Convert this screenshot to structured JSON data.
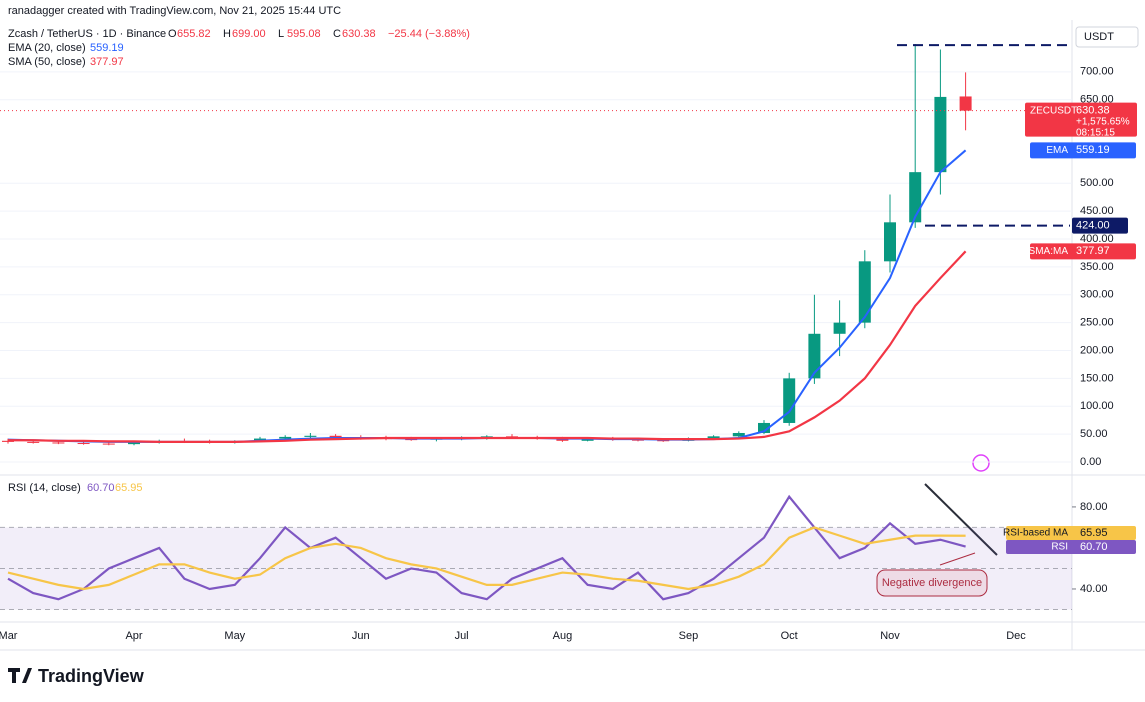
{
  "header": {
    "creator": "ranadagger created with TradingView.com, Nov 21, 2025 15:44 UTC",
    "ohlc": [
      {
        "label": "O",
        "value": "655.82"
      },
      {
        "label": "H",
        "value": "699.00"
      },
      {
        "label": "L",
        "value": "595.08"
      },
      {
        "label": "C",
        "value": "630.38"
      }
    ],
    "change": "−25.44 (−3.88%)",
    "currency": "USDT",
    "price_badge": {
      "symbol": "ZECUSDT",
      "price": "630.38",
      "change": "+1,575.65%",
      "countdown": "08:15:15"
    },
    "brand": "TradingView"
  },
  "chart_data": [
    {
      "type": "candlestick",
      "title": "Zcash / TetherUS · 1D · Binance",
      "categories": [
        "Mar",
        null,
        null,
        null,
        null,
        "Apr",
        null,
        null,
        null,
        "May",
        null,
        null,
        null,
        null,
        "Jun",
        null,
        null,
        null,
        "Jul",
        null,
        null,
        null,
        "Aug",
        null,
        null,
        null,
        null,
        "Sep",
        null,
        null,
        null,
        "Oct",
        null,
        null,
        null,
        "Nov",
        null,
        null,
        null,
        null,
        "Dec"
      ],
      "open": [
        38,
        36,
        35,
        34,
        33,
        32,
        35,
        37,
        36,
        35,
        37,
        42,
        45,
        47,
        44,
        43,
        41,
        40,
        42,
        43,
        46,
        44,
        42,
        38,
        42,
        40,
        39,
        38,
        42,
        46,
        52,
        70,
        150,
        230,
        250,
        360,
        430,
        520,
        655.82,
        null,
        null
      ],
      "high": [
        42,
        40,
        38,
        37,
        36,
        37,
        40,
        42,
        40,
        39,
        45,
        48,
        52,
        50,
        48,
        47,
        45,
        44,
        46,
        48,
        50,
        47,
        45,
        44,
        45,
        43,
        42,
        44,
        48,
        55,
        75,
        160,
        300,
        290,
        380,
        480,
        750,
        740,
        699,
        null,
        null
      ],
      "low": [
        33,
        33,
        32,
        31,
        30,
        30,
        33,
        34,
        33,
        33,
        35,
        40,
        42,
        42,
        40,
        39,
        38,
        37,
        39,
        40,
        42,
        40,
        36,
        37,
        38,
        37,
        36,
        37,
        40,
        44,
        50,
        65,
        140,
        190,
        240,
        340,
        420,
        480,
        595.08,
        null,
        null
      ],
      "close": [
        36,
        35,
        34,
        33,
        32,
        35,
        37,
        36,
        35,
        37,
        42,
        45,
        47,
        44,
        43,
        41,
        40,
        42,
        43,
        46,
        44,
        42,
        38,
        42,
        40,
        39,
        38,
        42,
        46,
        52,
        70,
        150,
        230,
        250,
        360,
        430,
        520,
        655,
        630.38,
        null,
        null
      ],
      "up_color": "#089981",
      "down_color": "#f23645",
      "series": [
        {
          "name": "EMA (20, close)",
          "badge": "EMA",
          "color": "#2962ff",
          "last_label": "559.19",
          "values": [
            40,
            39,
            38,
            37,
            36,
            36,
            36,
            36,
            36,
            36,
            38,
            40,
            42,
            43,
            43,
            43,
            42,
            42,
            42,
            43,
            43,
            43,
            42,
            42,
            41,
            41,
            40,
            40,
            41,
            43,
            55,
            90,
            160,
            205,
            260,
            330,
            440,
            520,
            559.19,
            null,
            null
          ]
        },
        {
          "name": "SMA (50, close)",
          "badge": "SMA:MA",
          "color": "#f23645",
          "last_label": "377.97",
          "values": [
            39,
            39,
            38,
            38,
            37,
            37,
            36,
            36,
            36,
            36,
            37,
            38,
            40,
            41,
            42,
            43,
            43,
            43,
            43,
            43,
            43,
            43,
            43,
            43,
            42,
            42,
            41,
            41,
            41,
            42,
            45,
            55,
            80,
            110,
            150,
            210,
            280,
            330,
            377.97,
            null,
            null
          ]
        }
      ],
      "ylim": [
        -14.4,
        793
      ],
      "yticks": [
        {
          "value": 0,
          "label": "0.00"
        },
        {
          "value": 50,
          "label": "50.00"
        },
        {
          "value": 100,
          "label": "100.00"
        },
        {
          "value": 150,
          "label": "150.00"
        },
        {
          "value": 200,
          "label": "200.00"
        },
        {
          "value": 250,
          "label": "250.00"
        },
        {
          "value": 300,
          "label": "300.00"
        },
        {
          "value": 350,
          "label": "350.00"
        },
        {
          "value": 400,
          "label": "400.00"
        },
        {
          "value": 450,
          "label": "450.00"
        },
        {
          "value": 500,
          "label": "500.00"
        },
        {
          "value": 650,
          "label": "650.00"
        },
        {
          "value": 700,
          "label": "700.00"
        }
      ],
      "levels": [
        {
          "value": 748
        },
        {
          "value": 424,
          "label": "424.00"
        }
      ]
    },
    {
      "type": "line",
      "title": "RSI (14, close)",
      "ylim": [
        23.9,
        94.1
      ],
      "yticks": [
        {
          "value": 80,
          "label": "80.00"
        },
        {
          "value": 40,
          "label": "40.00"
        }
      ],
      "band": [
        30,
        70
      ],
      "midline": 50,
      "annotation": "Negative divergence",
      "series": [
        {
          "name": "RSI",
          "color": "#7e57c2",
          "last_label": "60.70",
          "values": [
            45,
            38,
            35,
            40,
            50,
            55,
            60,
            45,
            40,
            42,
            55,
            70,
            60,
            65,
            55,
            45,
            50,
            48,
            38,
            35,
            45,
            50,
            55,
            42,
            40,
            48,
            35,
            38,
            45,
            55,
            65,
            85,
            70,
            55,
            60,
            72,
            62,
            64,
            60.7,
            null,
            null
          ]
        },
        {
          "name": "RSI-based MA",
          "color": "#f7c548",
          "last_label": "65.95",
          "values": [
            48,
            45,
            42,
            40,
            42,
            47,
            52,
            52,
            48,
            45,
            47,
            55,
            60,
            62,
            60,
            55,
            52,
            50,
            46,
            42,
            42,
            45,
            48,
            47,
            45,
            44,
            42,
            40,
            42,
            46,
            52,
            65,
            70,
            66,
            62,
            64,
            66,
            66,
            65.95,
            null,
            null
          ]
        }
      ]
    }
  ]
}
